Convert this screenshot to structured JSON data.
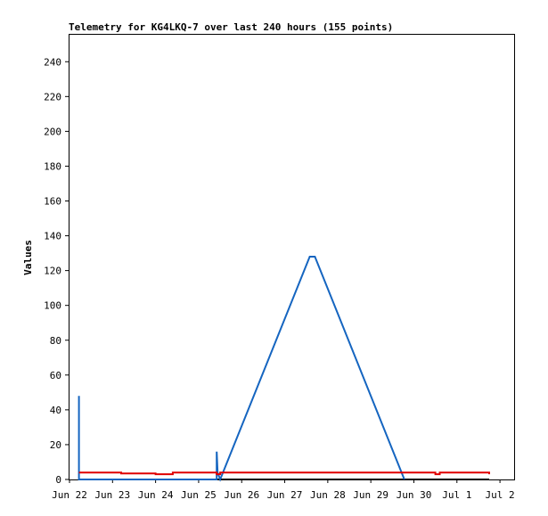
{
  "chart_data": {
    "type": "line",
    "title": "Telemetry for KG4LKQ-7 over last 240 hours (155 points)",
    "xlabel": "",
    "ylabel": "Values",
    "x_ticks": [
      "Jun 22",
      "Jun 23",
      "Jun 24",
      "Jun 25",
      "Jun 26",
      "Jun 27",
      "Jun 28",
      "Jun 29",
      "Jun 30",
      "Jul 1",
      "Jul 2"
    ],
    "y_ticks": [
      0,
      20,
      40,
      60,
      80,
      100,
      120,
      140,
      160,
      180,
      200,
      220,
      240
    ],
    "xlim_days": [
      0,
      10.35
    ],
    "ylim": [
      0,
      256
    ],
    "grid": false,
    "legend": "none",
    "series": [
      {
        "color": "#000000",
        "points": [
          [
            0.22,
            0
          ],
          [
            9.75,
            0
          ]
        ]
      },
      {
        "color": "#1565c0",
        "points": [
          [
            0.22,
            48
          ],
          [
            0.22,
            0
          ],
          [
            3.42,
            0
          ],
          [
            3.42,
            16
          ],
          [
            3.44,
            4
          ],
          [
            3.5,
            0
          ],
          [
            5.58,
            128
          ],
          [
            5.7,
            128
          ],
          [
            7.78,
            0
          ]
        ]
      },
      {
        "color": "#e00000",
        "points": [
          [
            0.22,
            4
          ],
          [
            1.2,
            4
          ],
          [
            1.2,
            3.5
          ],
          [
            2.0,
            3.5
          ],
          [
            2.0,
            3
          ],
          [
            2.4,
            3
          ],
          [
            2.4,
            4
          ],
          [
            3.42,
            4
          ],
          [
            3.42,
            3
          ],
          [
            3.5,
            3
          ],
          [
            3.5,
            4
          ],
          [
            8.5,
            4
          ],
          [
            8.5,
            3
          ],
          [
            8.6,
            3
          ],
          [
            8.6,
            4
          ],
          [
            9.75,
            4
          ],
          [
            9.75,
            3
          ]
        ]
      }
    ]
  }
}
